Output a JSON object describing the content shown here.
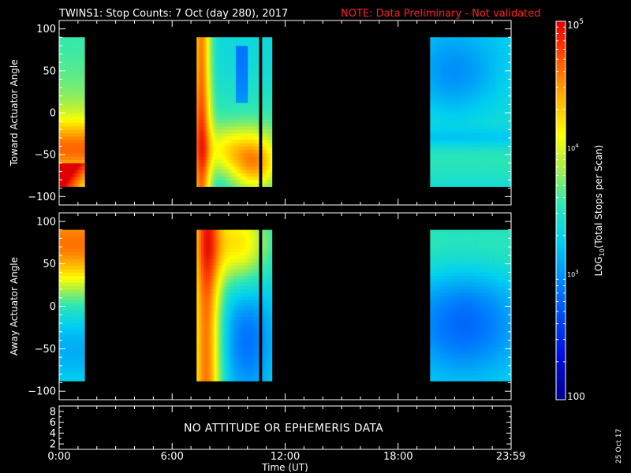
{
  "header": {
    "title": "TWINS1: Stop Counts:  7 Oct (day 280), 2017",
    "note": "NOTE: Data Preliminary - Not validated"
  },
  "chart_data": [
    {
      "type": "heatmap",
      "panel": "toward",
      "ylabel": "Toward Actuator Angle",
      "ylim": [
        -110,
        110
      ],
      "yticks": [
        100,
        50,
        0,
        -50,
        -100
      ],
      "x_unit": "hours UT",
      "data_extent_y": [
        -88,
        90
      ],
      "data_blocks": [
        {
          "start": 0.0,
          "end": 1.35
        },
        {
          "start": 7.3,
          "end": 10.6
        },
        {
          "start": 10.78,
          "end": 11.3
        },
        {
          "start": 19.7,
          "end": 23.98
        }
      ],
      "features": [
        {
          "kind": "high-count-corner",
          "block": 0,
          "angle_range": [
            -90,
            -60
          ],
          "level": 4.9
        },
        {
          "kind": "high-count-band",
          "block": 1,
          "angle_range": [
            -90,
            90
          ],
          "hours": [
            7.3,
            7.9
          ],
          "level": 4.6
        },
        {
          "kind": "high-count-arc",
          "block": 1,
          "angle_range": [
            -90,
            -30
          ],
          "level": 4.8
        },
        {
          "kind": "low-count-region",
          "block": 3,
          "angle_range": [
            0,
            90
          ],
          "level": 2.9
        }
      ]
    },
    {
      "type": "heatmap",
      "panel": "away",
      "ylabel": "Away Actuator Angle",
      "ylim": [
        -110,
        110
      ],
      "yticks": [
        100,
        50,
        0,
        -50,
        -100
      ],
      "x_unit": "hours UT",
      "data_extent_y": [
        -88,
        90
      ],
      "data_blocks": [
        {
          "start": 0.0,
          "end": 1.35
        },
        {
          "start": 7.3,
          "end": 10.6
        },
        {
          "start": 10.78,
          "end": 11.3
        },
        {
          "start": 19.7,
          "end": 23.98
        }
      ],
      "features": [
        {
          "kind": "high-count-top",
          "block": 0,
          "angle_range": [
            20,
            90
          ],
          "level": 4.6
        },
        {
          "kind": "high-count-band",
          "block": 1,
          "angle_range": [
            -90,
            90
          ],
          "hours": [
            7.3,
            8.6
          ],
          "level": 4.6
        },
        {
          "kind": "low-count-region",
          "block": 3,
          "angle_range": [
            -90,
            20
          ],
          "level": 2.8
        }
      ]
    },
    {
      "type": "line",
      "panel": "attitude",
      "yticks": [
        8,
        6,
        4,
        2
      ],
      "ylim": [
        1,
        9
      ],
      "message": "NO ATTITUDE OR EPHEMERIS DATA"
    }
  ],
  "x_axis": {
    "xlim": [
      0,
      24
    ],
    "tick_values": [
      0,
      6,
      12,
      18,
      23.983
    ],
    "tick_labels": [
      "0:00",
      "6:00",
      "12:00",
      "18:00",
      "23:59"
    ],
    "label": "Time (UT)"
  },
  "colorbar": {
    "label_html_parts": [
      "LOG",
      "10",
      "(Total Stops per Scan)"
    ],
    "min_label": "100",
    "mid_label_base": "10",
    "mid_label_exp": "3",
    "upper_label_base": "10",
    "upper_label_exp": "4",
    "max_label_base": "10",
    "max_label_exp": "5",
    "log_range": [
      2,
      5
    ]
  },
  "footer": {
    "date_stamp": "25 Oct 17"
  },
  "colors": {
    "background": "#000000",
    "axis": "#ffffff",
    "note": "#ff2020"
  }
}
